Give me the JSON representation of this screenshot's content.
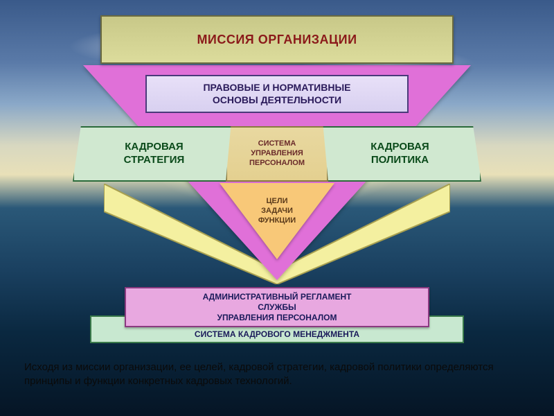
{
  "diagram": {
    "type": "flowchart",
    "title": "МИССИЯ ОРГАНИЗАЦИИ",
    "legal": "ПРАВОВЫЕ И НОРМАТИВНЫЕ\nОСНОВЫ ДЕЯТЕЛЬНОСТИ",
    "strategy": "КАДРОВАЯ\nСТРАТЕГИЯ",
    "policy": "КАДРОВАЯ\nПОЛИТИКА",
    "system": "СИСТЕМА\nУПРАВЛЕНИЯ\nПЕРСОНАЛОМ",
    "goals": "ЦЕЛИ\nЗАДАЧИ\nФУНКЦИИ",
    "admin": "АДМИНИСТРАТИВНЫЙ РЕГЛАМЕНТ\nСЛУЖБЫ\nУПРАВЛЕНИЯ ПЕРСОНАЛОМ",
    "system_bottom": "СИСТЕМА КАДРОВОГО МЕНЕДЖМЕНТА",
    "caption": "Исходя из миссии организации, ее целей, кадровой стратегии, кадровой политики определяются принципы и функции конкретных кадровых технологий.",
    "colors": {
      "mission_bg": "#dcdc9c",
      "mission_text": "#8b1a1a",
      "mission_border": "#6a6a40",
      "big_triangle": "#e070d8",
      "legal_bg": "#d8d0f0",
      "legal_text": "#2a1a5a",
      "legal_border": "#4a3a7a",
      "green_box_bg": "#d0e8d0",
      "green_box_text": "#0a4a1a",
      "green_box_border": "#2a6a3a",
      "system_bg": "#e4d090",
      "system_text": "#6a2a2a",
      "system_border": "#8a7a40",
      "goals_triangle": "#f8c878",
      "goals_text": "#5a3a1a",
      "chevron_fill": "#f4f0a0",
      "chevron_stroke": "#a8a050",
      "admin_bg": "#e8a8e0",
      "admin_text": "#1a1a5a",
      "admin_border": "#8a3a80",
      "sysbot_bg": "#c8e8d0",
      "sysbot_border": "#3a7a4a",
      "caption_text": "#0a0a0a"
    },
    "fonts": {
      "title_size": 18,
      "box_size": 14,
      "small_size": 11,
      "caption_size": 15,
      "family": "Arial"
    },
    "background": {
      "sky_top": "#3a5a8a",
      "horizon": "#e8e0b8",
      "sea_dark": "#0a2840"
    }
  }
}
